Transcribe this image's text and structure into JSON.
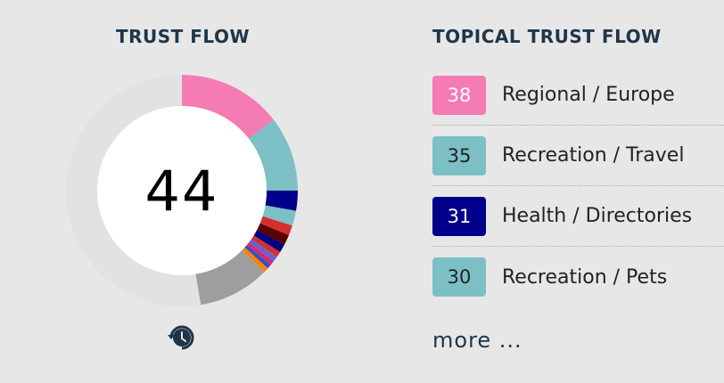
{
  "trust_flow": {
    "title": "TRUST FLOW",
    "score": "44",
    "chart_data": {
      "type": "pie",
      "total": 100,
      "slices": [
        {
          "value": 14.5,
          "color": "#f47bb4"
        },
        {
          "value": 10.5,
          "color": "#7cc0c5"
        },
        {
          "value": 2.8,
          "color": "#00008b"
        },
        {
          "value": 2.1,
          "color": "#7cc0c5"
        },
        {
          "value": 1.4,
          "color": "#d32f2f"
        },
        {
          "value": 1.4,
          "color": "#5a0000"
        },
        {
          "value": 1.2,
          "color": "#000080"
        },
        {
          "value": 0.8,
          "color": "#d32f2f"
        },
        {
          "value": 0.8,
          "color": "#7060c8"
        },
        {
          "value": 0.6,
          "color": "#d6286e"
        },
        {
          "value": 0.6,
          "color": "#3050c8"
        },
        {
          "value": 0.7,
          "color": "#ff7f00"
        },
        {
          "value": 10.0,
          "color": "#9e9e9e"
        },
        {
          "value": 52.6,
          "color": "#e2e2e2"
        }
      ]
    }
  },
  "topical_trust_flow": {
    "title": "TOPICAL TRUST FLOW",
    "topics": [
      {
        "score": "38",
        "label": "Regional / Europe",
        "badge_color": "#f47bb4",
        "text_color": "#ffffff"
      },
      {
        "score": "35",
        "label": "Recreation / Travel",
        "badge_color": "#7cc0c5",
        "text_color": "#222222"
      },
      {
        "score": "31",
        "label": "Health / Directories",
        "badge_color": "#00008b",
        "text_color": "#ffffff"
      },
      {
        "score": "30",
        "label": "Recreation / Pets",
        "badge_color": "#7cc0c5",
        "text_color": "#222222"
      }
    ],
    "more_label": "more ..."
  },
  "icons": {
    "history": "history-icon"
  }
}
